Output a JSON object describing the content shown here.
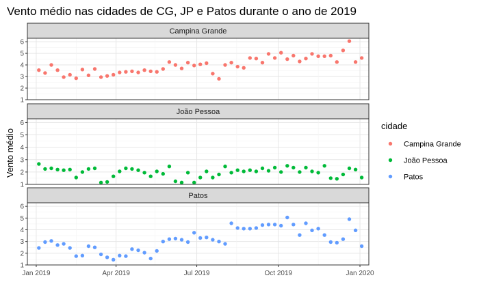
{
  "chart_data": {
    "type": "scatter",
    "title": "Vento médio nas cidades de CG, JP e Patos durante o ano de 2019",
    "ylabel": "Vento médio",
    "xlabel": "",
    "ylim": [
      1,
      6.3
    ],
    "y_ticks": [
      "1",
      "2",
      "3",
      "4",
      "5",
      "6"
    ],
    "x_ticks": [
      {
        "label": "Jan 2019",
        "date": "2019-01-01"
      },
      {
        "label": "Apr 2019",
        "date": "2019-04-01"
      },
      {
        "label": "Jul 2019",
        "date": "2019-07-01"
      },
      {
        "label": "Oct 2019",
        "date": "2019-10-01"
      },
      {
        "label": "Jan 2020",
        "date": "2020-01-01"
      }
    ],
    "xlim": [
      "2018-12-22",
      "2020-01-11"
    ],
    "grid": true,
    "legend": {
      "title": "cidade",
      "position": "right"
    },
    "series": [
      {
        "name": "Campina Grande",
        "color": "#F8766D",
        "points": [
          [
            "2019-01-04",
            3.55
          ],
          [
            "2019-01-11",
            3.3
          ],
          [
            "2019-01-18",
            4.0
          ],
          [
            "2019-01-25",
            3.55
          ],
          [
            "2019-02-01",
            2.95
          ],
          [
            "2019-02-08",
            3.15
          ],
          [
            "2019-02-15",
            2.85
          ],
          [
            "2019-02-22",
            3.6
          ],
          [
            "2019-03-01",
            3.1
          ],
          [
            "2019-03-08",
            3.65
          ],
          [
            "2019-03-15",
            2.95
          ],
          [
            "2019-03-22",
            3.05
          ],
          [
            "2019-03-29",
            3.15
          ],
          [
            "2019-04-05",
            3.35
          ],
          [
            "2019-04-12",
            3.4
          ],
          [
            "2019-04-19",
            3.45
          ],
          [
            "2019-04-26",
            3.35
          ],
          [
            "2019-05-03",
            3.55
          ],
          [
            "2019-05-10",
            3.45
          ],
          [
            "2019-05-17",
            3.4
          ],
          [
            "2019-05-24",
            3.65
          ],
          [
            "2019-05-31",
            4.25
          ],
          [
            "2019-06-07",
            4.0
          ],
          [
            "2019-06-14",
            3.7
          ],
          [
            "2019-06-21",
            4.2
          ],
          [
            "2019-06-28",
            3.95
          ],
          [
            "2019-07-05",
            4.05
          ],
          [
            "2019-07-12",
            4.15
          ],
          [
            "2019-07-19",
            3.25
          ],
          [
            "2019-07-26",
            2.8
          ],
          [
            "2019-08-02",
            4.0
          ],
          [
            "2019-08-09",
            4.2
          ],
          [
            "2019-08-16",
            3.85
          ],
          [
            "2019-08-23",
            3.75
          ],
          [
            "2019-08-30",
            4.6
          ],
          [
            "2019-09-06",
            4.55
          ],
          [
            "2019-09-13",
            4.2
          ],
          [
            "2019-09-20",
            4.95
          ],
          [
            "2019-09-27",
            4.6
          ],
          [
            "2019-10-04",
            5.05
          ],
          [
            "2019-10-11",
            4.5
          ],
          [
            "2019-10-18",
            4.8
          ],
          [
            "2019-10-25",
            4.3
          ],
          [
            "2019-11-01",
            4.55
          ],
          [
            "2019-11-08",
            4.95
          ],
          [
            "2019-11-15",
            4.75
          ],
          [
            "2019-11-22",
            4.75
          ],
          [
            "2019-11-29",
            4.8
          ],
          [
            "2019-12-06",
            4.25
          ],
          [
            "2019-12-13",
            5.25
          ],
          [
            "2019-12-20",
            6.05
          ],
          [
            "2019-12-27",
            4.25
          ],
          [
            "2020-01-03",
            4.6
          ]
        ]
      },
      {
        "name": "João Pessoa",
        "color": "#00BA38",
        "points": [
          [
            "2019-01-04",
            2.65
          ],
          [
            "2019-01-11",
            2.25
          ],
          [
            "2019-01-18",
            2.3
          ],
          [
            "2019-01-25",
            2.2
          ],
          [
            "2019-02-01",
            2.15
          ],
          [
            "2019-02-08",
            2.2
          ],
          [
            "2019-02-15",
            1.55
          ],
          [
            "2019-02-22",
            2.0
          ],
          [
            "2019-03-01",
            2.25
          ],
          [
            "2019-03-08",
            2.3
          ],
          [
            "2019-03-15",
            1.15
          ],
          [
            "2019-03-22",
            1.2
          ],
          [
            "2019-03-29",
            1.65
          ],
          [
            "2019-04-05",
            2.05
          ],
          [
            "2019-04-12",
            2.3
          ],
          [
            "2019-04-19",
            2.25
          ],
          [
            "2019-04-26",
            2.15
          ],
          [
            "2019-05-03",
            1.95
          ],
          [
            "2019-05-10",
            1.65
          ],
          [
            "2019-05-17",
            2.05
          ],
          [
            "2019-05-24",
            1.85
          ],
          [
            "2019-05-31",
            2.45
          ],
          [
            "2019-06-07",
            1.25
          ],
          [
            "2019-06-14",
            1.15
          ],
          [
            "2019-06-21",
            1.95
          ],
          [
            "2019-06-28",
            1.15
          ],
          [
            "2019-07-05",
            1.55
          ],
          [
            "2019-07-12",
            2.05
          ],
          [
            "2019-07-19",
            1.55
          ],
          [
            "2019-07-26",
            1.8
          ],
          [
            "2019-08-02",
            2.45
          ],
          [
            "2019-08-09",
            1.95
          ],
          [
            "2019-08-16",
            2.15
          ],
          [
            "2019-08-23",
            2.05
          ],
          [
            "2019-08-30",
            2.15
          ],
          [
            "2019-09-06",
            2.05
          ],
          [
            "2019-09-13",
            2.3
          ],
          [
            "2019-09-20",
            2.1
          ],
          [
            "2019-09-27",
            2.35
          ],
          [
            "2019-10-04",
            2.0
          ],
          [
            "2019-10-11",
            2.5
          ],
          [
            "2019-10-18",
            2.35
          ],
          [
            "2019-10-25",
            2.0
          ],
          [
            "2019-11-01",
            2.35
          ],
          [
            "2019-11-08",
            2.05
          ],
          [
            "2019-11-15",
            1.95
          ],
          [
            "2019-11-22",
            2.5
          ],
          [
            "2019-11-29",
            1.5
          ],
          [
            "2019-12-06",
            1.45
          ],
          [
            "2019-12-13",
            1.8
          ],
          [
            "2019-12-20",
            2.3
          ],
          [
            "2019-12-27",
            2.2
          ],
          [
            "2020-01-03",
            1.55
          ]
        ]
      },
      {
        "name": "Patos",
        "color": "#619CFF",
        "points": [
          [
            "2019-01-04",
            2.45
          ],
          [
            "2019-01-11",
            2.95
          ],
          [
            "2019-01-18",
            3.05
          ],
          [
            "2019-01-25",
            2.7
          ],
          [
            "2019-02-01",
            2.8
          ],
          [
            "2019-02-08",
            2.45
          ],
          [
            "2019-02-15",
            1.75
          ],
          [
            "2019-02-22",
            1.8
          ],
          [
            "2019-03-01",
            2.6
          ],
          [
            "2019-03-08",
            2.5
          ],
          [
            "2019-03-15",
            1.9
          ],
          [
            "2019-03-22",
            1.65
          ],
          [
            "2019-03-29",
            1.45
          ],
          [
            "2019-04-05",
            1.8
          ],
          [
            "2019-04-12",
            1.75
          ],
          [
            "2019-04-19",
            2.35
          ],
          [
            "2019-04-26",
            2.25
          ],
          [
            "2019-05-03",
            2.05
          ],
          [
            "2019-05-10",
            1.55
          ],
          [
            "2019-05-17",
            2.2
          ],
          [
            "2019-05-24",
            3.0
          ],
          [
            "2019-05-31",
            3.2
          ],
          [
            "2019-06-07",
            3.25
          ],
          [
            "2019-06-14",
            3.15
          ],
          [
            "2019-06-21",
            2.95
          ],
          [
            "2019-06-28",
            3.75
          ],
          [
            "2019-07-05",
            3.3
          ],
          [
            "2019-07-12",
            3.35
          ],
          [
            "2019-07-19",
            3.15
          ],
          [
            "2019-07-26",
            3.0
          ],
          [
            "2019-08-02",
            2.8
          ],
          [
            "2019-08-09",
            4.55
          ],
          [
            "2019-08-16",
            4.15
          ],
          [
            "2019-08-23",
            4.1
          ],
          [
            "2019-08-30",
            4.1
          ],
          [
            "2019-09-06",
            4.15
          ],
          [
            "2019-09-13",
            4.4
          ],
          [
            "2019-09-20",
            4.45
          ],
          [
            "2019-09-27",
            4.45
          ],
          [
            "2019-10-04",
            4.35
          ],
          [
            "2019-10-11",
            5.05
          ],
          [
            "2019-10-18",
            4.45
          ],
          [
            "2019-10-25",
            3.55
          ],
          [
            "2019-11-01",
            4.55
          ],
          [
            "2019-11-08",
            3.95
          ],
          [
            "2019-11-15",
            4.1
          ],
          [
            "2019-11-22",
            3.55
          ],
          [
            "2019-11-29",
            2.95
          ],
          [
            "2019-12-06",
            2.9
          ],
          [
            "2019-12-13",
            3.2
          ],
          [
            "2019-12-20",
            4.9
          ],
          [
            "2019-12-27",
            3.95
          ],
          [
            "2020-01-03",
            2.6
          ]
        ]
      }
    ]
  }
}
